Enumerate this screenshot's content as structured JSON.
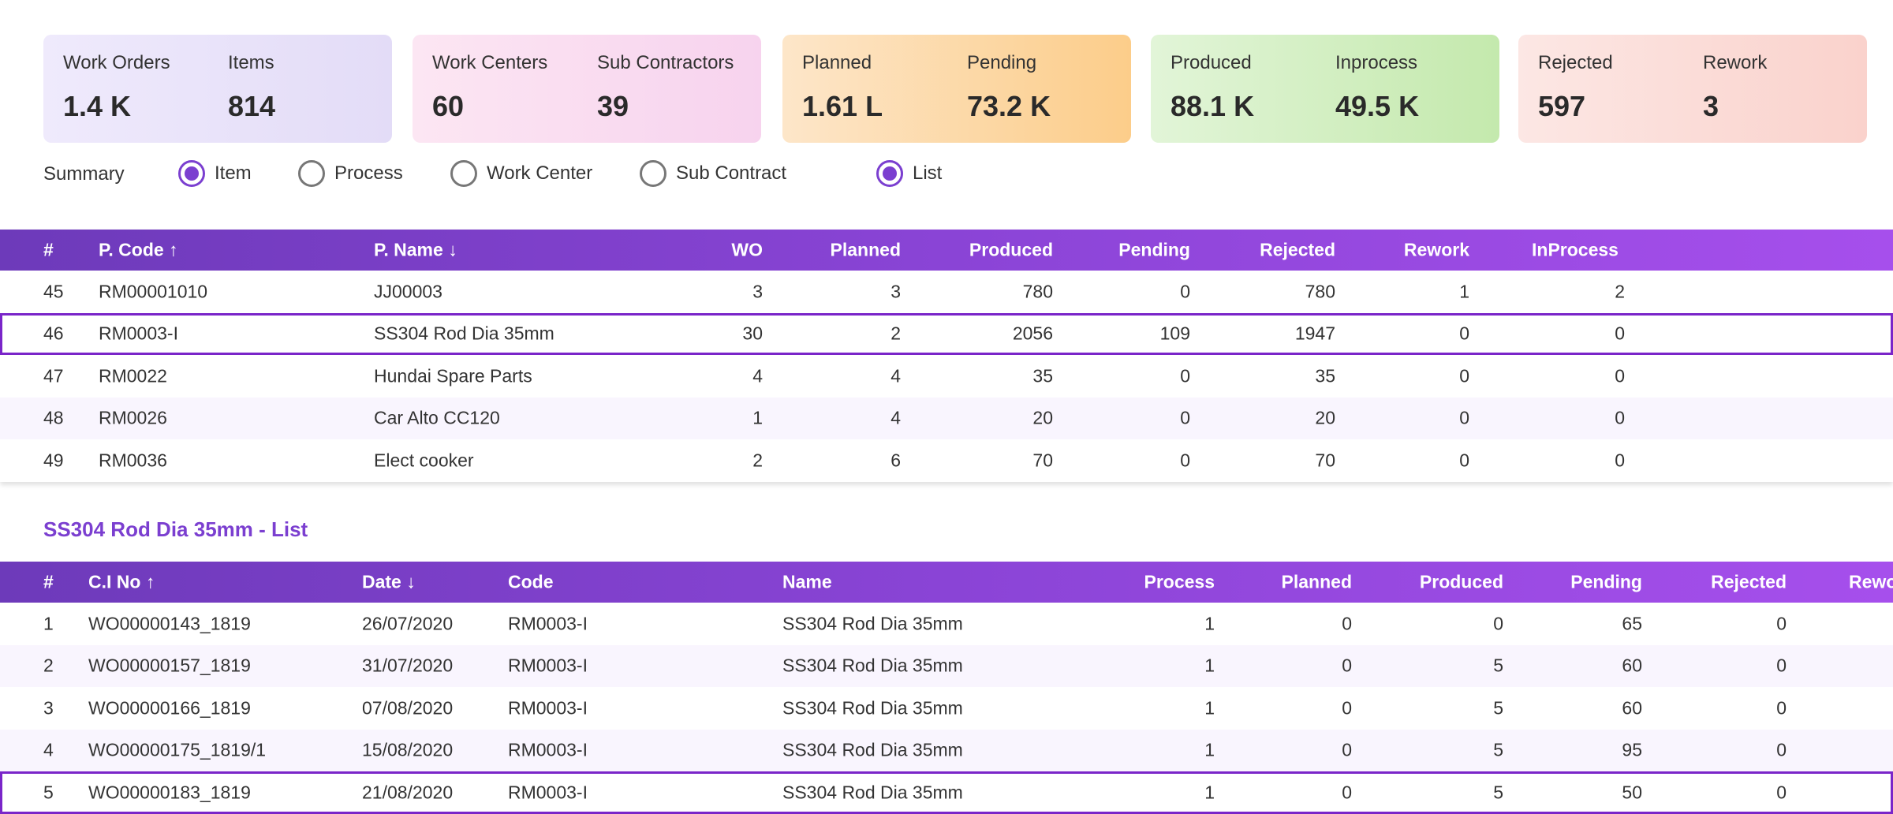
{
  "cards": [
    {
      "stats": [
        {
          "label": "Work Orders",
          "value": "1.4 K"
        },
        {
          "label": "Items",
          "value": "814"
        }
      ]
    },
    {
      "stats": [
        {
          "label": "Work Centers",
          "value": "60"
        },
        {
          "label": "Sub Contractors",
          "value": "39"
        }
      ]
    },
    {
      "stats": [
        {
          "label": "Planned",
          "value": "1.61 L"
        },
        {
          "label": "Pending",
          "value": "73.2 K"
        }
      ]
    },
    {
      "stats": [
        {
          "label": "Produced",
          "value": "88.1 K"
        },
        {
          "label": "Inprocess",
          "value": "49.5 K"
        }
      ]
    },
    {
      "stats": [
        {
          "label": "Rejected",
          "value": "597"
        },
        {
          "label": "Rework",
          "value": "3"
        }
      ]
    }
  ],
  "summary": {
    "label": "Summary",
    "options": [
      {
        "label": "Item",
        "checked": true
      },
      {
        "label": "Process",
        "checked": false
      },
      {
        "label": "Work Center",
        "checked": false
      },
      {
        "label": "Sub Contract",
        "checked": false
      },
      {
        "label": "List",
        "checked": true
      }
    ]
  },
  "table1": {
    "columns": [
      "#",
      "P. Code ↑",
      "P. Name ↓",
      "WO",
      "Planned",
      "Produced",
      "Pending",
      "Rejected",
      "Rework",
      "InProcess"
    ],
    "selected_index": 1,
    "rows": [
      [
        "45",
        "RM00001010",
        "JJ00003",
        "3",
        "3",
        "780",
        "0",
        "780",
        "1",
        "2"
      ],
      [
        "46",
        "RM0003-I",
        "SS304 Rod Dia 35mm",
        "30",
        "2",
        "2056",
        "109",
        "1947",
        "0",
        "0"
      ],
      [
        "47",
        "RM0022",
        "Hundai Spare Parts",
        "4",
        "4",
        "35",
        "0",
        "35",
        "0",
        "0"
      ],
      [
        "48",
        "RM0026",
        "Car Alto CC120",
        "1",
        "4",
        "20",
        "0",
        "20",
        "0",
        "0"
      ],
      [
        "49",
        "RM0036",
        "Elect cooker",
        "2",
        "6",
        "70",
        "0",
        "70",
        "0",
        "0"
      ]
    ]
  },
  "list_title": "SS304 Rod Dia 35mm - List",
  "table2": {
    "columns": [
      "#",
      "C.I No ↑",
      "Date ↓",
      "Code",
      "Name",
      "Process",
      "Planned",
      "Produced",
      "Pending",
      "Rejected",
      "Rework"
    ],
    "selected_index": 4,
    "rows": [
      [
        "1",
        "WO00000143_1819",
        "26/07/2020",
        "RM0003-I",
        "SS304 Rod Dia 35mm",
        "1",
        "0",
        "0",
        "65",
        "0",
        ""
      ],
      [
        "2",
        "WO00000157_1819",
        "31/07/2020",
        "RM0003-I",
        "SS304 Rod Dia 35mm",
        "1",
        "0",
        "5",
        "60",
        "0",
        ""
      ],
      [
        "3",
        "WO00000166_1819",
        "07/08/2020",
        "RM0003-I",
        "SS304 Rod Dia 35mm",
        "1",
        "0",
        "5",
        "60",
        "0",
        ""
      ],
      [
        "4",
        "WO00000175_1819/1",
        "15/08/2020",
        "RM0003-I",
        "SS304 Rod Dia 35mm",
        "1",
        "0",
        "5",
        "95",
        "0",
        ""
      ],
      [
        "5",
        "WO00000183_1819",
        "21/08/2020",
        "RM0003-I",
        "SS304 Rod Dia 35mm",
        "1",
        "0",
        "5",
        "50",
        "0",
        ""
      ]
    ]
  }
}
